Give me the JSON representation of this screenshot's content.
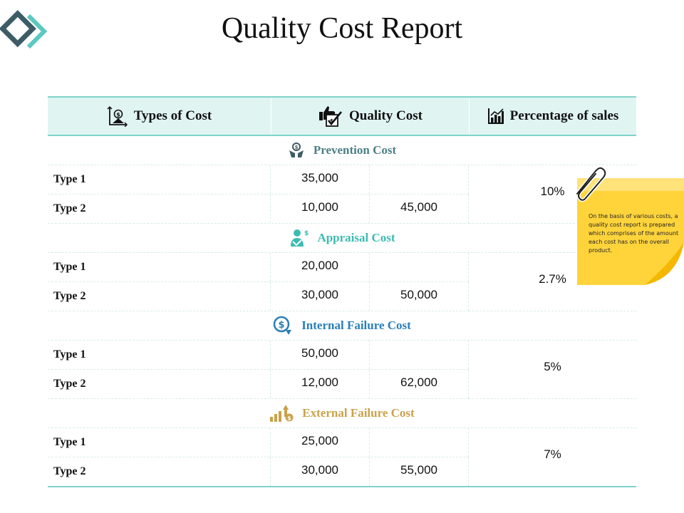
{
  "title": "Quality Cost Report",
  "colors": {
    "accent": "#7fd3c9",
    "header_bg": "#e0f5f2",
    "logo_dark": "#3d5c66",
    "logo_light": "#5bc9c0",
    "note": "#ffd43b"
  },
  "table": {
    "headers": [
      "Types of Cost",
      "Quality Cost",
      "Percentage of sales"
    ],
    "header_icons": [
      "cost-types-icon",
      "thumbs-up-checkbox-icon",
      "bar-chart-icon"
    ],
    "sections": [
      {
        "name": "Prevention Cost",
        "color": "#4d7f86",
        "icon": "hand-money-icon",
        "rows": [
          {
            "type": "Type 1",
            "value": "35,000",
            "total": ""
          },
          {
            "type": "Type 2",
            "value": "10,000",
            "total": "45,000"
          }
        ],
        "percentage": "10%"
      },
      {
        "name": "Appraisal Cost",
        "color": "#3cbcb1",
        "icon": "person-money-icon",
        "rows": [
          {
            "type": "Type 1",
            "value": "20,000",
            "total": ""
          },
          {
            "type": "Type 2",
            "value": "30,000",
            "total": "50,000"
          }
        ],
        "percentage": "2.7%"
      },
      {
        "name": "Internal Failure Cost",
        "color": "#2a7fb8",
        "icon": "dollar-down-icon",
        "rows": [
          {
            "type": "Type 1",
            "value": "50,000",
            "total": ""
          },
          {
            "type": "Type 2",
            "value": "12,000",
            "total": "62,000"
          }
        ],
        "percentage": "5%"
      },
      {
        "name": "External Failure Cost",
        "color": "#c9a24a",
        "icon": "growth-bars-icon",
        "rows": [
          {
            "type": "Type 1",
            "value": "25,000",
            "total": ""
          },
          {
            "type": "Type 2",
            "value": "30,000",
            "total": "55,000"
          }
        ],
        "percentage": "7%"
      }
    ]
  },
  "note": {
    "text": "On the basis of various costs, a quality cost report is prepared which comprises of the amount each cost has on the overall product."
  }
}
